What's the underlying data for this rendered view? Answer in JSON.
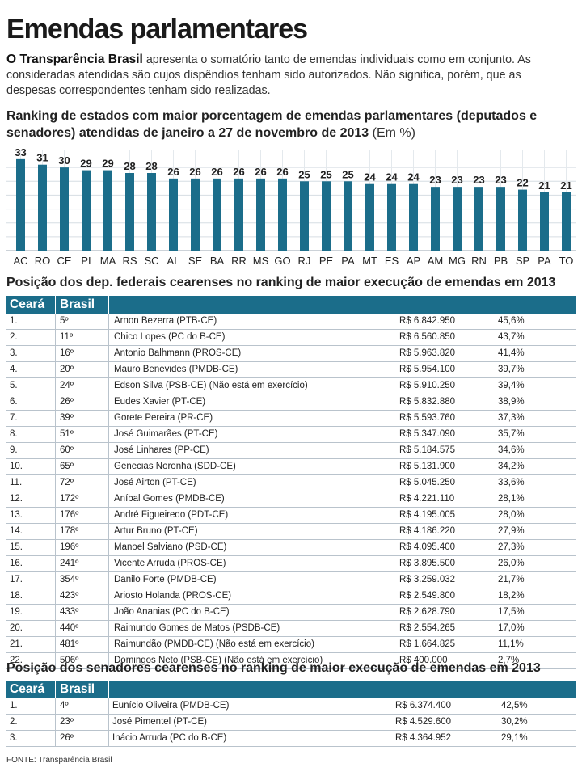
{
  "title": "Emendas parlamentares",
  "intro": {
    "lead": "O Transparência Brasil",
    "text": " apresenta o somatório tanto de emendas individuais como em conjunto. As consideradas atendidas são cujos dispêndios tenham sido autorizados. Não significa, porém, que as despesas correspondentes tenham sido realizadas."
  },
  "chart_title": "Ranking de estados com maior porcentagem de emendas parlamentares (deputados e senadores) atendidas de janeiro a 27 de novembro de 2013",
  "chart_unit": "(Em %)",
  "colors": {
    "bar": "#1b6d8a",
    "header": "#1b6d8a",
    "rule": "#b9c3cc"
  },
  "chart_data": {
    "type": "bar",
    "categories": [
      "AC",
      "RO",
      "CE",
      "PI",
      "MA",
      "RS",
      "SC",
      "AL",
      "SE",
      "BA",
      "RR",
      "MS",
      "GO",
      "RJ",
      "PE",
      "PA",
      "MT",
      "ES",
      "AP",
      "AM",
      "MG",
      "RN",
      "PB",
      "SP",
      "PA",
      "TO"
    ],
    "values": [
      33,
      31,
      30,
      29,
      29,
      28,
      28,
      26,
      26,
      26,
      26,
      26,
      26,
      25,
      25,
      25,
      24,
      24,
      24,
      23,
      23,
      23,
      23,
      22,
      21,
      21
    ],
    "title": "Ranking de estados com maior porcentagem de emendas parlamentares (deputados e senadores) atendidas de janeiro a 27 de novembro de 2013",
    "ylabel": "",
    "xlabel": "",
    "ylim": [
      0,
      35
    ],
    "grid": true,
    "data_labels": true
  },
  "deputados": {
    "title": "Posição dos dep. federais cearenses no ranking de maior execução de emendas em 2013",
    "headers": [
      "Ceará",
      "Brasil"
    ],
    "rows": [
      [
        "1.",
        "5º",
        "Arnon Bezerra (PTB-CE)",
        "R$ 6.842.950",
        "45,6%"
      ],
      [
        "2.",
        "11º",
        "Chico Lopes (PC do B-CE)",
        "R$ 6.560.850",
        "43,7%"
      ],
      [
        "3.",
        "16º",
        "Antonio Balhmann (PROS-CE)",
        "R$ 5.963.820",
        "41,4%"
      ],
      [
        "4.",
        "20º",
        "Mauro Benevides (PMDB-CE)",
        "R$ 5.954.100",
        "39,7%"
      ],
      [
        "5.",
        "24º",
        "Edson Silva (PSB-CE) (Não está em exercício)",
        "R$ 5.910.250",
        "39,4%"
      ],
      [
        "6.",
        "26º",
        "Eudes Xavier (PT-CE)",
        "R$ 5.832.880",
        "38,9%"
      ],
      [
        "7.",
        "39º",
        "Gorete Pereira (PR-CE)",
        "R$ 5.593.760",
        "37,3%"
      ],
      [
        "8.",
        "51º",
        "José Guimarães (PT-CE)",
        "R$ 5.347.090",
        "35,7%"
      ],
      [
        "9.",
        "60º",
        "José Linhares (PP-CE)",
        "R$ 5.184.575",
        "34,6%"
      ],
      [
        "10.",
        "65º",
        "Genecias Noronha (SDD-CE)",
        "R$ 5.131.900",
        "34,2%"
      ],
      [
        "11.",
        "72º",
        "José Airton (PT-CE)",
        "R$ 5.045.250",
        "33,6%"
      ],
      [
        "12.",
        "172º",
        "Aníbal Gomes (PMDB-CE)",
        "R$ 4.221.110",
        "28,1%"
      ],
      [
        "13.",
        "176º",
        "André Figueiredo (PDT-CE)",
        "R$ 4.195.005",
        "28,0%"
      ],
      [
        "14.",
        "178º",
        "Artur Bruno (PT-CE)",
        "R$ 4.186.220",
        "27,9%"
      ],
      [
        "15.",
        "196º",
        "Manoel Salviano (PSD-CE)",
        "R$ 4.095.400",
        "27,3%"
      ],
      [
        "16.",
        "241º",
        "Vicente Arruda (PROS-CE)",
        "R$ 3.895.500",
        "26,0%"
      ],
      [
        "17.",
        "354º",
        "Danilo Forte (PMDB-CE)",
        "R$ 3.259.032",
        "21,7%"
      ],
      [
        "18.",
        "423º",
        "Ariosto Holanda (PROS-CE)",
        "R$ 2.549.800",
        "18,2%"
      ],
      [
        "19.",
        "433º",
        "João Ananias (PC do B-CE)",
        "R$ 2.628.790",
        "17,5%"
      ],
      [
        "20.",
        "440º",
        "Raimundo Gomes de Matos (PSDB-CE)",
        "R$ 2.554.265",
        "17,0%"
      ],
      [
        "21.",
        "481º",
        "Raimundão (PMDB-CE) (Não está em exercício)",
        "R$ 1.664.825",
        "11,1%"
      ],
      [
        "22.",
        "506º",
        "Domingos Neto (PSB-CE) (Não está em exercício)",
        "R$ 400.000",
        "2,7%"
      ]
    ]
  },
  "senadores": {
    "title": "Posição dos senadores cearenses no ranking de maior execução de emendas em 2013",
    "headers": [
      "Ceará",
      "Brasil"
    ],
    "rows": [
      [
        "1.",
        "4º",
        "Eunício Oliveira (PMDB-CE)",
        "R$ 6.374.400",
        "42,5%"
      ],
      [
        "2.",
        "23º",
        "José Pimentel (PT-CE)",
        "R$ 4.529.600",
        "30,2%"
      ],
      [
        "3.",
        "26º",
        "Inácio Arruda (PC do B-CE)",
        "R$ 4.364.952",
        "29,1%"
      ]
    ]
  },
  "source": "FONTE: Transparência Brasil"
}
